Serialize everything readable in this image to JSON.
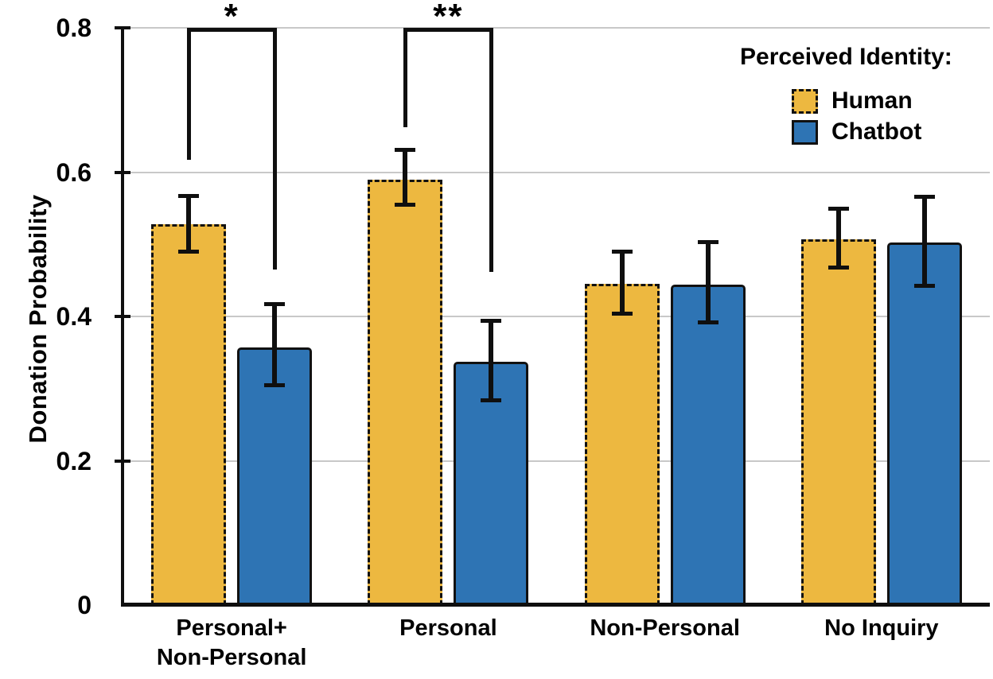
{
  "chart_data": {
    "type": "bar",
    "title": "",
    "xlabel": "",
    "ylabel": "Donation Probability",
    "ylim": [
      0,
      0.8
    ],
    "grid": true,
    "y_ticks": [
      {
        "value": 0,
        "label": "0"
      },
      {
        "value": 0.2,
        "label": "0.2"
      },
      {
        "value": 0.4,
        "label": "0.4"
      },
      {
        "value": 0.6,
        "label": "0.6"
      },
      {
        "value": 0.8,
        "label": "0.8"
      }
    ],
    "categories": [
      "Personal+\nNon-Personal",
      "Personal",
      "Non-Personal",
      "No Inquiry"
    ],
    "legend": {
      "title": "Perceived Identity:",
      "position": "top-right"
    },
    "series": [
      {
        "name": "Human",
        "color": "#EDB840",
        "border_style": "dashed",
        "values": [
          0.528,
          0.59,
          0.445,
          0.507
        ],
        "error_low": [
          0.489,
          0.554,
          0.403,
          0.467
        ],
        "error_high": [
          0.568,
          0.631,
          0.49,
          0.55
        ]
      },
      {
        "name": "Chatbot",
        "color": "#2E74B4",
        "border_style": "solid",
        "values": [
          0.357,
          0.337,
          0.444,
          0.502
        ],
        "error_low": [
          0.304,
          0.283,
          0.391,
          0.442
        ],
        "error_high": [
          0.418,
          0.395,
          0.504,
          0.566
        ]
      }
    ],
    "significance_brackets": [
      {
        "label": "*",
        "group": 0,
        "from_series": 0,
        "to_series": 1,
        "top": 0.8,
        "left_leg_bottom": 0.617,
        "right_leg_bottom": 0.465
      },
      {
        "label": "**",
        "group": 1,
        "from_series": 0,
        "to_series": 1,
        "top": 0.8,
        "left_leg_bottom": 0.662,
        "right_leg_bottom": 0.462
      }
    ]
  }
}
